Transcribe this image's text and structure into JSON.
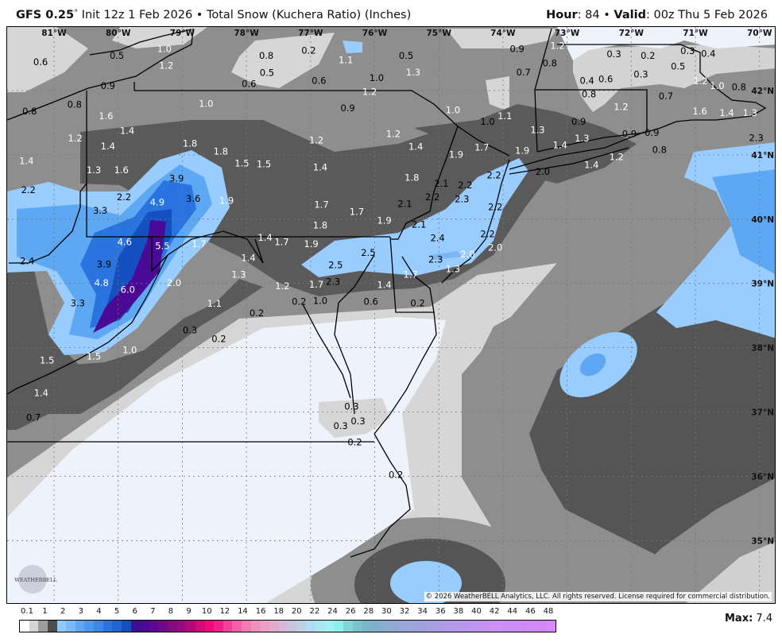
{
  "header": {
    "model": "GFS 0.25",
    "model_deg": "°",
    "init": " Init 12z 1 Feb 2026",
    "sep": " • ",
    "product": "Total Snow (Kuchera Ratio) (Inches)",
    "hour_label": "Hour",
    "hour": ": 84",
    "valid_label": "Valid",
    "valid": ": 00z Thu 5 Feb 2026"
  },
  "map": {
    "lon_ticks": [
      {
        "label": "81°W",
        "lon": 81
      },
      {
        "label": "80°W",
        "lon": 80
      },
      {
        "label": "79°W",
        "lon": 79
      },
      {
        "label": "78°W",
        "lon": 78
      },
      {
        "label": "77°W",
        "lon": 77
      },
      {
        "label": "76°W",
        "lon": 76
      },
      {
        "label": "75°W",
        "lon": 75
      },
      {
        "label": "74°W",
        "lon": 74
      },
      {
        "label": "73°W",
        "lon": 73
      },
      {
        "label": "72°W",
        "lon": 72
      },
      {
        "label": "71°W",
        "lon": 71
      },
      {
        "label": "70°W",
        "lon": 70
      }
    ],
    "lat_ticks": [
      {
        "label": "42°N",
        "lat": 42
      },
      {
        "label": "41°N",
        "lat": 41
      },
      {
        "label": "40°N",
        "lat": 40
      },
      {
        "label": "39°N",
        "lat": 39
      },
      {
        "label": "38°N",
        "lat": 38
      },
      {
        "label": "37°N",
        "lat": 37
      },
      {
        "label": "36°N",
        "lat": 36
      },
      {
        "label": "35°N",
        "lat": 35
      }
    ],
    "snow_labels": [
      [
        "1.0",
        79.28,
        42.73,
        "#fff"
      ],
      [
        "0.6",
        81.21,
        42.44,
        "#000"
      ],
      [
        "0.5",
        80.02,
        42.54,
        "#000"
      ],
      [
        "1.2",
        79.25,
        42.47,
        "#fff"
      ],
      [
        "0.9",
        80.16,
        42.07,
        "#000"
      ],
      [
        "0.8",
        80.68,
        41.78,
        "#000"
      ],
      [
        "0.8",
        81.38,
        41.67,
        "#000"
      ],
      [
        "1.6",
        80.19,
        41.6,
        "#fff"
      ],
      [
        "1.4",
        79.86,
        41.37,
        "#fff"
      ],
      [
        "1.2",
        80.67,
        41.25,
        "#fff"
      ],
      [
        "1.4",
        80.16,
        41.13,
        "#fff"
      ],
      [
        "1.4",
        81.43,
        40.9,
        "#fff"
      ],
      [
        "1.3",
        80.38,
        40.76,
        "#fff"
      ],
      [
        "1.6",
        79.95,
        40.76,
        "#fff"
      ],
      [
        "2.2",
        81.4,
        40.45,
        "#000"
      ],
      [
        "2.2",
        79.91,
        40.34,
        "#000"
      ],
      [
        "3.3",
        80.28,
        40.13,
        "#000"
      ],
      [
        "3.9",
        79.09,
        40.63,
        "#000"
      ],
      [
        "4.9",
        79.39,
        40.26,
        "#fff"
      ],
      [
        "3.6",
        78.83,
        40.31,
        "#000"
      ],
      [
        "1.8",
        78.88,
        41.17,
        "#fff"
      ],
      [
        "1.8",
        78.4,
        41.05,
        "#fff"
      ],
      [
        "1.5",
        78.07,
        40.86,
        "#fff"
      ],
      [
        "1.5",
        77.84,
        40.85,
        "#fff"
      ],
      [
        "1.9",
        78.31,
        40.28,
        "#fff"
      ],
      [
        "1.0",
        78.63,
        41.79,
        "#fff"
      ],
      [
        "0.6",
        77.96,
        42.1,
        "#000"
      ],
      [
        "0.8",
        77.69,
        42.54,
        "#000"
      ],
      [
        "0.5",
        77.68,
        42.36,
        "#000"
      ],
      [
        "0.2",
        77.03,
        42.62,
        "#000"
      ],
      [
        "1.1",
        76.45,
        42.47,
        "#fff"
      ],
      [
        "0.6",
        76.87,
        42.15,
        "#000"
      ],
      [
        "1.0",
        75.97,
        42.19,
        "#000"
      ],
      [
        "1.2",
        76.08,
        42.06,
        "#fff"
      ],
      [
        "0.5",
        75.51,
        42.54,
        "#000"
      ],
      [
        "1.3",
        75.4,
        42.28,
        "#fff"
      ],
      [
        "0.9",
        76.42,
        41.72,
        "#000"
      ],
      [
        "1.0",
        74.78,
        41.69,
        "#fff"
      ],
      [
        "1.0",
        74.24,
        41.51,
        "#000"
      ],
      [
        "1.2",
        76.91,
        41.22,
        "#fff"
      ],
      [
        "1.2",
        75.71,
        41.32,
        "#fff"
      ],
      [
        "1.4",
        75.36,
        41.12,
        "#fff"
      ],
      [
        "1.4",
        76.85,
        40.8,
        "#fff"
      ],
      [
        "1.9",
        74.73,
        41.0,
        "#fff"
      ],
      [
        "1.7",
        74.33,
        41.11,
        "#fff"
      ],
      [
        "1.8",
        75.42,
        40.64,
        "#fff"
      ],
      [
        "2.1",
        74.96,
        40.55,
        "#000"
      ],
      [
        "2.2",
        75.1,
        40.34,
        "#000"
      ],
      [
        "2.2",
        74.59,
        40.52,
        "#000"
      ],
      [
        "2.3",
        74.64,
        40.39,
        "#000"
      ],
      [
        "2.1",
        75.53,
        40.23,
        "#000"
      ],
      [
        "1.7",
        76.83,
        40.22,
        "#fff"
      ],
      [
        "1.7",
        76.28,
        40.11,
        "#fff"
      ],
      [
        "1.8",
        76.85,
        39.9,
        "#fff"
      ],
      [
        "1.9",
        75.85,
        39.97,
        "#fff"
      ],
      [
        "2.2",
        74.12,
        40.18,
        "#000"
      ],
      [
        "2.2",
        74.14,
        40.68,
        "#000"
      ],
      [
        "1.1",
        73.97,
        41.6,
        "#fff"
      ],
      [
        "0.9",
        73.78,
        42.73,
        "#000"
      ],
      [
        "1.2",
        73.15,
        42.69,
        "#fff"
      ],
      [
        "0.8",
        73.27,
        42.42,
        "#000"
      ],
      [
        "0.7",
        73.68,
        42.28,
        "#000"
      ],
      [
        "0.3",
        72.27,
        42.56,
        "#000"
      ],
      [
        "0.2",
        71.74,
        42.54,
        "#000"
      ],
      [
        "0.3",
        71.85,
        42.25,
        "#000"
      ],
      [
        "0.3",
        71.12,
        42.7,
        "#000"
      ],
      [
        "0.4",
        70.91,
        42.57,
        "#000"
      ],
      [
        "0.5",
        71.27,
        42.46,
        "#000"
      ],
      [
        "0.4",
        72.69,
        42.15,
        "#000"
      ],
      [
        "0.6",
        72.51,
        42.17,
        "#000"
      ],
      [
        "0.8",
        72.66,
        41.94,
        "#000"
      ],
      [
        "1.2",
        72.16,
        41.74,
        "#fff"
      ],
      [
        "0.7",
        71.46,
        41.91,
        "#000"
      ],
      [
        "1.2",
        70.92,
        42.14,
        "#fff"
      ],
      [
        "1.0",
        70.66,
        42.07,
        "#fff"
      ],
      [
        "0.8",
        70.21,
        42.05,
        "#000"
      ],
      [
        "1.6",
        70.93,
        41.67,
        "#fff"
      ],
      [
        "1.4",
        70.51,
        41.65,
        "#fff"
      ],
      [
        "1.3",
        70.26,
        41.65,
        "#fff"
      ],
      [
        "0.9",
        72.82,
        41.51,
        "#000"
      ],
      [
        "1.3",
        73.46,
        41.38,
        "#fff"
      ],
      [
        "1.4",
        73.11,
        41.15,
        "#fff"
      ],
      [
        "1.3",
        72.88,
        41.25,
        "#fff"
      ],
      [
        "0.9",
        72.03,
        41.32,
        "#000"
      ],
      [
        "0.9",
        71.79,
        41.34,
        "#000"
      ],
      [
        "0.8",
        71.56,
        41.16,
        "#000"
      ],
      [
        "1.2",
        72.23,
        40.96,
        "#fff"
      ],
      [
        "1.4",
        72.62,
        40.84,
        "#fff"
      ],
      [
        "2.0",
        73.38,
        40.73,
        "#000"
      ],
      [
        "1.9",
        73.7,
        41.06,
        "#fff"
      ],
      [
        "2.3",
        70.05,
        41.26,
        "#000"
      ],
      [
        "4.6",
        79.9,
        39.64,
        "#fff"
      ],
      [
        "5.5",
        79.31,
        39.58,
        "#fff"
      ],
      [
        "1.7",
        78.74,
        39.61,
        "#fff"
      ],
      [
        "3.9",
        80.22,
        39.29,
        "#000"
      ],
      [
        "4.8",
        80.26,
        39.0,
        "#fff"
      ],
      [
        "6.0",
        79.85,
        38.9,
        "#fff"
      ],
      [
        "2.0",
        79.13,
        39.0,
        "#fff"
      ],
      [
        "3.3",
        80.63,
        38.69,
        "#000"
      ],
      [
        "2.4",
        81.42,
        39.34,
        "#000"
      ],
      [
        "1.4",
        77.71,
        39.71,
        "#fff"
      ],
      [
        "1.7",
        77.45,
        39.64,
        "#fff"
      ],
      [
        "1.9",
        76.99,
        39.61,
        "#fff"
      ],
      [
        "1.4",
        77.97,
        39.39,
        "#fff"
      ],
      [
        "1.3",
        78.12,
        39.13,
        "#fff"
      ],
      [
        "1.1",
        78.5,
        38.68,
        "#fff"
      ],
      [
        "0.2",
        77.84,
        38.53,
        "#000"
      ],
      [
        "0.3",
        78.88,
        38.27,
        "#000"
      ],
      [
        "0.2",
        78.43,
        38.13,
        "#000"
      ],
      [
        "1.0",
        79.82,
        37.96,
        "#fff"
      ],
      [
        "1.5",
        81.11,
        37.8,
        "#fff"
      ],
      [
        "1.5",
        80.38,
        37.86,
        "#fff"
      ],
      [
        "1.4",
        81.2,
        37.29,
        "#fff"
      ],
      [
        "0.7",
        81.32,
        36.91,
        "#000"
      ],
      [
        "1.2",
        77.44,
        38.95,
        "#fff"
      ],
      [
        "1.7",
        76.91,
        38.98,
        "#fff"
      ],
      [
        "1.0",
        76.85,
        38.81,
        "#000"
      ],
      [
        "0.2",
        77.18,
        38.71,
        "#000"
      ],
      [
        "2.5",
        76.61,
        39.28,
        "#000"
      ],
      [
        "2.3",
        76.65,
        39.17,
        "#000"
      ],
      [
        "2.5",
        76.1,
        39.47,
        "#000"
      ],
      [
        "1.4",
        75.85,
        38.97,
        "#fff"
      ],
      [
        "0.6",
        76.06,
        38.8,
        "#000"
      ],
      [
        "2.4",
        75.02,
        39.7,
        "#000"
      ],
      [
        "2.3",
        75.05,
        39.37,
        "#000"
      ],
      [
        "2.1",
        75.31,
        39.91,
        "#000"
      ],
      [
        "2.0",
        74.55,
        39.45,
        "#fff"
      ],
      [
        "2.2",
        74.24,
        39.76,
        "#000"
      ],
      [
        "2.0",
        74.12,
        39.7,
        "#fff"
      ],
      [
        "1.3",
        74.78,
        39.22,
        "#fff"
      ],
      [
        "1.7",
        75.44,
        39.13,
        "#fff"
      ],
      [
        "0.2",
        75.33,
        38.69,
        "#000"
      ],
      [
        "0.3",
        76.36,
        37.08,
        "#000"
      ],
      [
        "0.3",
        76.26,
        36.94,
        "#000"
      ],
      [
        "0.3",
        76.42,
        36.78,
        "#000"
      ],
      [
        "0.2",
        76.31,
        36.67,
        "#000"
      ],
      [
        "0.2",
        75.67,
        36.02,
        "#000"
      ]
    ],
    "copyright": "© 2026 WeatherBELL Analytics, LLC. All rights reserved. License required for commercial distribution.",
    "logo_text": "WEATHERBELL",
    "colors": {
      "land_none": "#eef3fb",
      "light_gray": "#d6d6d6",
      "mid_gray": "#8e8e8e",
      "dark_gray": "#5a5a5a",
      "darkest_gray": "#4a4a4a",
      "blue1": "#99ccff",
      "blue2": "#5ea8f3",
      "blue3": "#2a74e0",
      "blue4": "#1550c0",
      "purple": "#4b0a96"
    }
  },
  "legend": {
    "ticks": [
      "0.1",
      "1",
      "2",
      "3",
      "4",
      "5",
      "6",
      "7",
      "8",
      "9",
      "10",
      "12",
      "14",
      "16",
      "18",
      "20",
      "22",
      "24",
      "26",
      "28",
      "30",
      "32",
      "34",
      "36",
      "38",
      "40",
      "42",
      "44",
      "46",
      "48"
    ],
    "colors": [
      "#ffffff",
      "#d4d4d4",
      "#9c9c9c",
      "#4d4d4d",
      "#8ecbfa",
      "#79b9f7",
      "#5ea8f3",
      "#4a98ef",
      "#3a88ea",
      "#2a74e0",
      "#1f64d2",
      "#1550c0",
      "#3c0f9a",
      "#4b0a96",
      "#5c0a90",
      "#6e0a8a",
      "#820a84",
      "#9a0a7e",
      "#b4087a",
      "#d00a78",
      "#f00a78",
      "#f0208a",
      "#f4409a",
      "#f560a8",
      "#f37cb4",
      "#f090bd",
      "#eaa0c6",
      "#e0aacd",
      "#d6b8d8",
      "#c8c4e0",
      "#bcd0e8",
      "#b0dcef",
      "#a8e6f2",
      "#9ef3f2",
      "#8af0ee",
      "#7ed6d6",
      "#7cc4cc",
      "#7ab8c8",
      "#80b0cc",
      "#88aed0",
      "#90a8d4",
      "#98a6d8",
      "#9ca4da",
      "#a0a0dc",
      "#a6a0e0",
      "#ac9ce4",
      "#b29ae8",
      "#b898ec",
      "#bc96ee",
      "#c294f0",
      "#c692f2",
      "#ca90f4",
      "#cc8ef4",
      "#ce8cf6",
      "#d08af6",
      "#d28af8",
      "#d488f8",
      "#d888fa"
    ],
    "max_label": "Max:",
    "max_value": " 7.4"
  }
}
